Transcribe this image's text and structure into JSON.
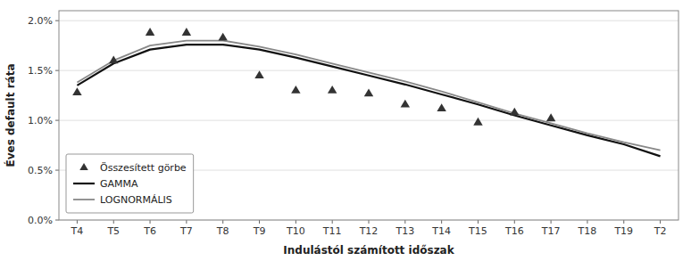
{
  "chart_data": {
    "type": "line",
    "xlabel": "Indulástól számított időszak",
    "ylabel": "Éves default ráta",
    "categories": [
      "T4",
      "T5",
      "T6",
      "T7",
      "T8",
      "T9",
      "T10",
      "T11",
      "T12",
      "T13",
      "T14",
      "T15",
      "T16",
      "T17",
      "T18",
      "T19",
      "T2"
    ],
    "ylim": [
      0.0,
      0.021
    ],
    "yticks": [
      {
        "value": 0.0,
        "label": "0.0%"
      },
      {
        "value": 0.005,
        "label": "0.5%"
      },
      {
        "value": 0.01,
        "label": "1.0%"
      },
      {
        "value": 0.015,
        "label": "1.5%"
      },
      {
        "value": 0.02,
        "label": "2.0%"
      }
    ],
    "grid": "y",
    "legend": "lower left",
    "series": [
      {
        "name": "Összesített görbe",
        "type": "scatter",
        "marker": "triangle",
        "color": "#333333",
        "values": [
          0.0128,
          0.016,
          0.0188,
          0.0188,
          0.0183,
          0.0145,
          0.013,
          0.013,
          0.0127,
          0.0116,
          0.0112,
          0.0098,
          0.0108,
          0.0102,
          null,
          null,
          null
        ]
      },
      {
        "name": "GAMMA",
        "type": "line",
        "color": "#111111",
        "values": [
          0.0135,
          0.0157,
          0.0171,
          0.0176,
          0.0176,
          0.0171,
          0.0163,
          0.0154,
          0.0145,
          0.0136,
          0.0126,
          0.0116,
          0.0105,
          0.0095,
          0.0085,
          0.0076,
          0.0064
        ]
      },
      {
        "name": "LOGNORMÁLIS",
        "type": "line",
        "color": "#888888",
        "values": [
          0.0138,
          0.016,
          0.0175,
          0.018,
          0.018,
          0.0174,
          0.0166,
          0.0157,
          0.0148,
          0.0139,
          0.0129,
          0.0118,
          0.0107,
          0.0097,
          0.0087,
          0.0078,
          0.007
        ]
      }
    ]
  }
}
